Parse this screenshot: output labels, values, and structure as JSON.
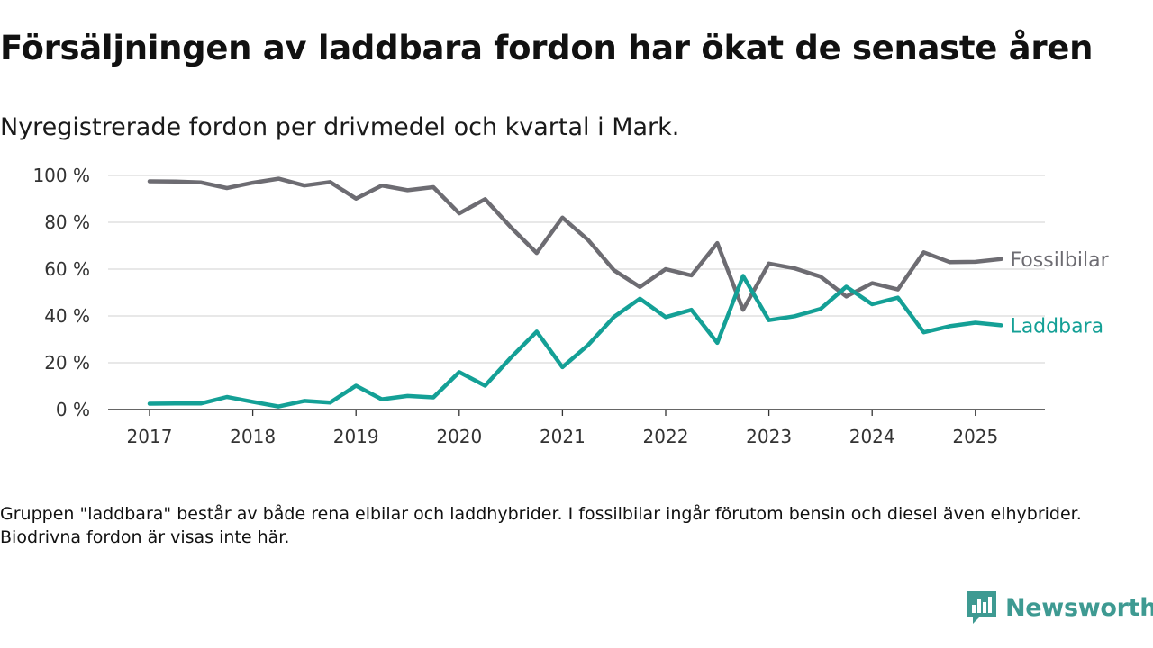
{
  "title": "Försäljningen av laddbara fordon har ökat de senaste åren",
  "subtitle": "Nyregistrerade fordon per drivmedel och kvartal i Mark.",
  "note": "Gruppen \"laddbara\" består av både rena elbilar och laddhybrider. I fossilbilar ingår förutom bensin och diesel även elhybrider. Biodrivna fordon är visas inte här.",
  "brand": {
    "name": "Newsworthy",
    "color": "#3e9a92",
    "icon": "bar-chart-speech-bubble-icon"
  },
  "chart_data": {
    "type": "line",
    "x": [
      "2017-01-01",
      "2017-04-01",
      "2017-07-01",
      "2017-10-01",
      "2018-01-01",
      "2018-04-01",
      "2018-07-01",
      "2018-10-01",
      "2019-01-01",
      "2019-04-01",
      "2019-07-01",
      "2019-10-01",
      "2020-01-01",
      "2020-04-01",
      "2020-07-01",
      "2020-10-01",
      "2021-01-01",
      "2021-04-01",
      "2021-07-01",
      "2021-10-01",
      "2022-01-01",
      "2022-04-01",
      "2022-07-01",
      "2022-10-01",
      "2023-01-01",
      "2023-04-01",
      "2023-07-01",
      "2023-10-01",
      "2024-01-01",
      "2024-04-01",
      "2024-07-01",
      "2024-10-01",
      "2025-01-01",
      "2025-04-01"
    ],
    "series": [
      {
        "name": "Fossilbilar",
        "color": "#6d6c72",
        "values": [
          97.5,
          97.4,
          97.0,
          94.6,
          96.9,
          98.6,
          95.7,
          97.2,
          90.1,
          95.7,
          93.7,
          95.0,
          83.8,
          89.9,
          77.9,
          66.9,
          82.0,
          72.4,
          59.5,
          52.4,
          60.0,
          57.3,
          71.1,
          42.6,
          62.4,
          60.3,
          56.8,
          48.3,
          54.0,
          51.3,
          67.2,
          63.0,
          63.1,
          64.3
        ]
      },
      {
        "name": "Laddbara",
        "color": "#14a096",
        "values": [
          2.5,
          2.6,
          2.6,
          5.4,
          3.3,
          1.3,
          3.7,
          3.0,
          10.2,
          4.4,
          5.8,
          5.2,
          16.0,
          10.2,
          22.2,
          33.3,
          18.1,
          27.6,
          39.6,
          47.4,
          39.5,
          42.6,
          28.5,
          57.1,
          38.2,
          39.9,
          43.0,
          52.5,
          45.0,
          47.8,
          33.0,
          35.6,
          37.1,
          36.0
        ]
      }
    ],
    "x_ticks": [
      "2017",
      "2018",
      "2019",
      "2020",
      "2021",
      "2022",
      "2023",
      "2024",
      "2025"
    ],
    "y_ticks": [
      "0 %",
      "20 %",
      "40 %",
      "60 %",
      "80 %",
      "100 %"
    ],
    "ylim": [
      0,
      100
    ],
    "grid": true,
    "legend": "inline-right"
  }
}
